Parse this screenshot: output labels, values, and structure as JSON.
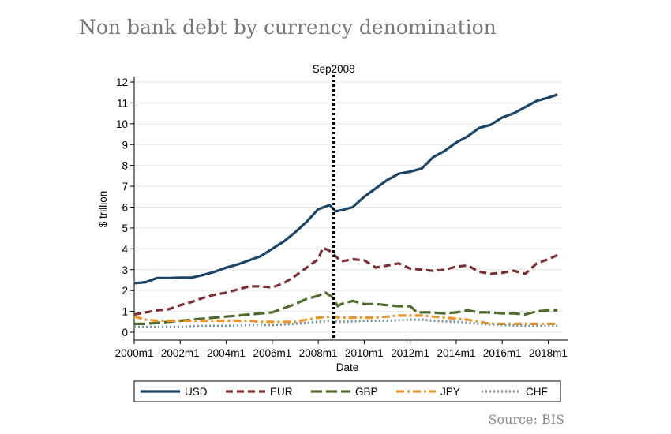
{
  "page": {
    "title": "Non bank debt by currency denomination",
    "source": "Source: BIS"
  },
  "chart_data": {
    "type": "line",
    "xlabel": "Date",
    "ylabel": "$ trillion",
    "xlim": [
      2000,
      2018.6
    ],
    "ylim": [
      0,
      12
    ],
    "yticks": [
      "0",
      "1",
      "2",
      "3",
      "4",
      "5",
      "6",
      "7",
      "8",
      "9",
      "10",
      "11",
      "12"
    ],
    "xticks": [
      {
        "v": 2000,
        "label": "2000m1"
      },
      {
        "v": 2002,
        "label": "2002m1"
      },
      {
        "v": 2004,
        "label": "2004m1"
      },
      {
        "v": 2006,
        "label": "2006m1"
      },
      {
        "v": 2008,
        "label": "2008m1"
      },
      {
        "v": 2010,
        "label": "2010m1"
      },
      {
        "v": 2012,
        "label": "2012m1"
      },
      {
        "v": 2014,
        "label": "2014m1"
      },
      {
        "v": 2016,
        "label": "2016m1"
      },
      {
        "v": 2018,
        "label": "2018m1"
      }
    ],
    "grid": true,
    "legend_position": "bottom",
    "annotation": {
      "label": "Sep2008",
      "x": 2008.67
    },
    "series": [
      {
        "name": "USD",
        "color": "#1b4568",
        "dash": "",
        "points": [
          [
            2000,
            2.35
          ],
          [
            2000.5,
            2.4
          ],
          [
            2001,
            2.6
          ],
          [
            2001.5,
            2.6
          ],
          [
            2002,
            2.62
          ],
          [
            2002.5,
            2.62
          ],
          [
            2003,
            2.75
          ],
          [
            2003.5,
            2.9
          ],
          [
            2004,
            3.1
          ],
          [
            2004.5,
            3.25
          ],
          [
            2005,
            3.45
          ],
          [
            2005.5,
            3.65
          ],
          [
            2006,
            4.0
          ],
          [
            2006.5,
            4.35
          ],
          [
            2007,
            4.8
          ],
          [
            2007.5,
            5.3
          ],
          [
            2008,
            5.9
          ],
          [
            2008.5,
            6.1
          ],
          [
            2008.75,
            5.8
          ],
          [
            2009,
            5.85
          ],
          [
            2009.5,
            6.0
          ],
          [
            2010,
            6.5
          ],
          [
            2010.5,
            6.9
          ],
          [
            2011,
            7.3
          ],
          [
            2011.5,
            7.6
          ],
          [
            2012,
            7.7
          ],
          [
            2012.5,
            7.85
          ],
          [
            2013,
            8.4
          ],
          [
            2013.5,
            8.7
          ],
          [
            2014,
            9.1
          ],
          [
            2014.5,
            9.4
          ],
          [
            2015,
            9.8
          ],
          [
            2015.5,
            9.95
          ],
          [
            2016,
            10.3
          ],
          [
            2016.5,
            10.5
          ],
          [
            2017,
            10.8
          ],
          [
            2017.5,
            11.1
          ],
          [
            2018,
            11.25
          ],
          [
            2018.4,
            11.4
          ]
        ]
      },
      {
        "name": "EUR",
        "color": "#7e2f35",
        "dash": "9,5",
        "points": [
          [
            2000,
            0.85
          ],
          [
            2000.5,
            0.95
          ],
          [
            2001,
            1.05
          ],
          [
            2001.5,
            1.1
          ],
          [
            2002,
            1.3
          ],
          [
            2002.5,
            1.45
          ],
          [
            2003,
            1.65
          ],
          [
            2003.5,
            1.8
          ],
          [
            2004,
            1.9
          ],
          [
            2004.5,
            2.05
          ],
          [
            2005,
            2.2
          ],
          [
            2005.5,
            2.2
          ],
          [
            2006,
            2.15
          ],
          [
            2006.5,
            2.35
          ],
          [
            2007,
            2.7
          ],
          [
            2007.5,
            3.1
          ],
          [
            2008,
            3.5
          ],
          [
            2008.2,
            4.05
          ],
          [
            2008.5,
            3.9
          ],
          [
            2009,
            3.4
          ],
          [
            2009.5,
            3.5
          ],
          [
            2010,
            3.45
          ],
          [
            2010.5,
            3.1
          ],
          [
            2011,
            3.2
          ],
          [
            2011.5,
            3.3
          ],
          [
            2012,
            3.05
          ],
          [
            2012.5,
            3.0
          ],
          [
            2013,
            2.95
          ],
          [
            2013.5,
            3.0
          ],
          [
            2014,
            3.15
          ],
          [
            2014.5,
            3.2
          ],
          [
            2015,
            2.9
          ],
          [
            2015.5,
            2.8
          ],
          [
            2016,
            2.85
          ],
          [
            2016.5,
            2.95
          ],
          [
            2017,
            2.8
          ],
          [
            2017.5,
            3.3
          ],
          [
            2018,
            3.5
          ],
          [
            2018.4,
            3.7
          ]
        ]
      },
      {
        "name": "GBP",
        "color": "#4f6b2e",
        "dash": "14,5",
        "points": [
          [
            2000,
            0.4
          ],
          [
            2000.5,
            0.4
          ],
          [
            2001,
            0.45
          ],
          [
            2001.5,
            0.5
          ],
          [
            2002,
            0.55
          ],
          [
            2002.5,
            0.6
          ],
          [
            2003,
            0.65
          ],
          [
            2003.5,
            0.7
          ],
          [
            2004,
            0.75
          ],
          [
            2004.5,
            0.8
          ],
          [
            2005,
            0.85
          ],
          [
            2005.5,
            0.9
          ],
          [
            2006,
            0.95
          ],
          [
            2006.5,
            1.15
          ],
          [
            2007,
            1.35
          ],
          [
            2007.5,
            1.6
          ],
          [
            2008,
            1.75
          ],
          [
            2008.3,
            1.9
          ],
          [
            2008.6,
            1.7
          ],
          [
            2008.85,
            1.25
          ],
          [
            2009,
            1.35
          ],
          [
            2009.5,
            1.5
          ],
          [
            2010,
            1.35
          ],
          [
            2010.5,
            1.35
          ],
          [
            2011,
            1.3
          ],
          [
            2011.5,
            1.25
          ],
          [
            2012,
            1.25
          ],
          [
            2012.3,
            0.95
          ],
          [
            2012.8,
            0.95
          ],
          [
            2013.5,
            0.9
          ],
          [
            2014,
            0.95
          ],
          [
            2014.5,
            1.05
          ],
          [
            2015,
            0.95
          ],
          [
            2015.5,
            0.95
          ],
          [
            2016,
            0.9
          ],
          [
            2016.5,
            0.9
          ],
          [
            2017,
            0.85
          ],
          [
            2017.5,
            1.0
          ],
          [
            2018,
            1.05
          ],
          [
            2018.4,
            1.05
          ]
        ]
      },
      {
        "name": "JPY",
        "color": "#e8962a",
        "dash": "10,4,3,4",
        "points": [
          [
            2000,
            0.75
          ],
          [
            2000.5,
            0.6
          ],
          [
            2001,
            0.55
          ],
          [
            2001.5,
            0.55
          ],
          [
            2002,
            0.55
          ],
          [
            2002.5,
            0.55
          ],
          [
            2003,
            0.55
          ],
          [
            2003.5,
            0.55
          ],
          [
            2004,
            0.55
          ],
          [
            2004.5,
            0.55
          ],
          [
            2005,
            0.55
          ],
          [
            2005.5,
            0.5
          ],
          [
            2006,
            0.5
          ],
          [
            2006.5,
            0.5
          ],
          [
            2007,
            0.5
          ],
          [
            2007.5,
            0.6
          ],
          [
            2008,
            0.7
          ],
          [
            2008.5,
            0.75
          ],
          [
            2009,
            0.7
          ],
          [
            2009.5,
            0.7
          ],
          [
            2010,
            0.7
          ],
          [
            2010.5,
            0.7
          ],
          [
            2011,
            0.75
          ],
          [
            2011.5,
            0.8
          ],
          [
            2012,
            0.8
          ],
          [
            2012.5,
            0.8
          ],
          [
            2013,
            0.75
          ],
          [
            2013.5,
            0.7
          ],
          [
            2014,
            0.65
          ],
          [
            2014.5,
            0.6
          ],
          [
            2015,
            0.5
          ],
          [
            2015.5,
            0.4
          ],
          [
            2016,
            0.4
          ],
          [
            2016.5,
            0.4
          ],
          [
            2017,
            0.4
          ],
          [
            2017.5,
            0.4
          ],
          [
            2018,
            0.4
          ],
          [
            2018.4,
            0.4
          ]
        ]
      },
      {
        "name": "CHF",
        "color": "#7a9597",
        "dash": "2,3",
        "points": [
          [
            2000,
            0.25
          ],
          [
            2001,
            0.25
          ],
          [
            2002,
            0.25
          ],
          [
            2003,
            0.3
          ],
          [
            2004,
            0.3
          ],
          [
            2005,
            0.35
          ],
          [
            2006,
            0.35
          ],
          [
            2007,
            0.4
          ],
          [
            2008,
            0.5
          ],
          [
            2008.5,
            0.55
          ],
          [
            2009,
            0.5
          ],
          [
            2010,
            0.55
          ],
          [
            2011,
            0.55
          ],
          [
            2012,
            0.6
          ],
          [
            2012.5,
            0.6
          ],
          [
            2013,
            0.55
          ],
          [
            2014,
            0.5
          ],
          [
            2014.5,
            0.45
          ],
          [
            2015,
            0.4
          ],
          [
            2016,
            0.35
          ],
          [
            2017,
            0.3
          ],
          [
            2018,
            0.3
          ],
          [
            2018.4,
            0.3
          ]
        ]
      }
    ]
  }
}
